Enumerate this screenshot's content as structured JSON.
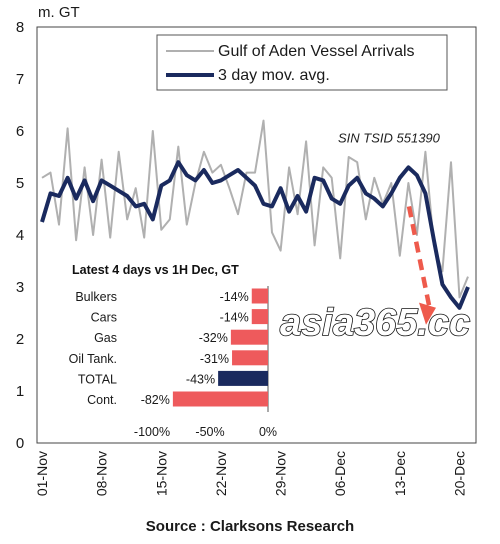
{
  "chart_data": {
    "type": "line",
    "y_unit": "m. GT",
    "ylim": [
      0,
      8
    ],
    "y_ticks": [
      0,
      1,
      2,
      3,
      4,
      5,
      6,
      7,
      8
    ],
    "x_tick_labels": [
      "01-Nov",
      "08-Nov",
      "15-Nov",
      "22-Nov",
      "29-Nov",
      "06-Dec",
      "13-Dec",
      "20-Dec"
    ],
    "x_days": 50,
    "grid": false,
    "legend_position": "top-right",
    "series": [
      {
        "name": "Gulf of Aden Vessel Arrivals",
        "color": "#b0b0b0",
        "values": [
          5.1,
          5.2,
          4.2,
          6.05,
          3.9,
          5.3,
          4.0,
          5.45,
          3.95,
          5.6,
          4.3,
          4.9,
          3.95,
          6.0,
          4.1,
          4.3,
          5.7,
          4.2,
          5.0,
          5.6,
          5.2,
          5.35,
          4.9,
          4.4,
          5.2,
          5.2,
          6.2,
          4.05,
          3.7,
          5.3,
          4.4,
          5.8,
          3.8,
          5.3,
          5.1,
          3.55,
          5.5,
          5.4,
          4.3,
          5.1,
          4.6,
          5.0,
          3.6,
          5.0,
          4.0,
          5.6,
          3.8,
          3.3,
          5.4,
          2.8,
          3.2
        ]
      },
      {
        "name": "3 day mov. avg.",
        "color": "#1a2a5e",
        "values": [
          4.25,
          4.8,
          4.75,
          5.1,
          4.7,
          5.05,
          4.65,
          5.05,
          4.95,
          4.85,
          4.75,
          4.55,
          4.6,
          4.3,
          4.95,
          5.05,
          5.4,
          5.15,
          5.05,
          5.25,
          5.0,
          5.05,
          5.15,
          5.25,
          5.1,
          4.95,
          4.6,
          4.55,
          4.9,
          4.45,
          4.75,
          4.45,
          5.1,
          5.05,
          4.7,
          4.6,
          4.95,
          5.1,
          4.8,
          4.7,
          4.55,
          4.8,
          5.1,
          5.3,
          5.15,
          4.8,
          3.9,
          3.05,
          2.8,
          2.6,
          3.0
        ]
      }
    ],
    "annotation": "SIN TSID 551390",
    "inset": {
      "type": "bar",
      "title": "Latest 4 days vs 1H Dec, GT",
      "categories": [
        "Bulkers",
        "Cars",
        "Gas",
        "Oil Tank.",
        "TOTAL",
        "Cont."
      ],
      "values": [
        -14,
        -14,
        -32,
        -31,
        -43,
        -82
      ],
      "value_labels": [
        "-14%",
        "-14%",
        "-32%",
        "-31%",
        "-43%",
        "-82%"
      ],
      "colors": [
        "#ee5a5c",
        "#ee5a5c",
        "#ee5a5c",
        "#ee5a5c",
        "#1a2a5e",
        "#ee5a5c"
      ],
      "xlim": [
        -100,
        0
      ],
      "x_tick_labels": [
        "-100%",
        "-50%",
        "0%"
      ]
    }
  },
  "source": "Source : Clarksons Research",
  "watermark": "asia365.cc"
}
